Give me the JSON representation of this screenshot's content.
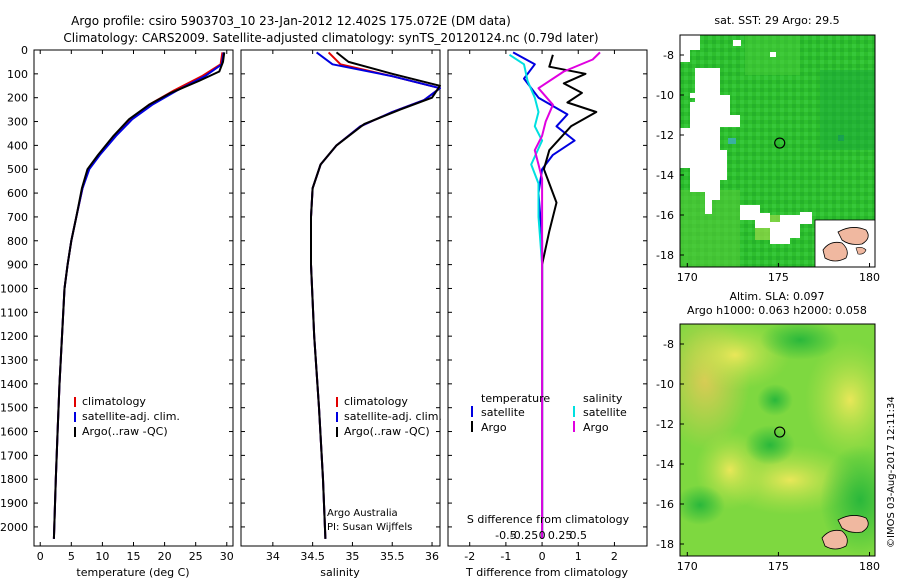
{
  "header": {
    "line1": "Argo profile: csiro 5903703_10 23-Jan-2012 12.402S 175.072E (DM data)",
    "line2": "Climatology: CARS2009. Satellite-adjusted climatology: synTS_20120124.nc (0.79d later)"
  },
  "depth_ticks": [
    0,
    100,
    200,
    300,
    400,
    500,
    600,
    700,
    800,
    900,
    1000,
    1100,
    1200,
    1300,
    1400,
    1500,
    1600,
    1700,
    1800,
    1900,
    2000
  ],
  "colors": {
    "climatology": "#e00000",
    "satellite": "#0000e0",
    "argo": "#000000",
    "satellite_s": "#00e0e0",
    "argo_s": "#e000e0"
  },
  "legend": {
    "climatology": "climatology",
    "satellite_adj": "satellite-adj. clim.",
    "argo": "Argo(..raw -QC)"
  },
  "panel_diff": {
    "title_left": "temperature",
    "title_right": "salinity",
    "satellite": "satellite",
    "argo": "Argo",
    "s_axis_label": "S difference from climatology",
    "xlabel": "T difference from climatology"
  },
  "credits": {
    "line1": "Argo Australia",
    "line2": "PI: Susan Wijffels"
  },
  "map_sst": {
    "title": "sat. SST: 29 Argo: 29.5"
  },
  "map_sla": {
    "title1": "Altim. SLA: 0.097",
    "title2": "Argo h1000: 0.063 h2000: 0.058"
  },
  "timestamp": "©IMOS 03-Aug-2017 12:11:34",
  "chart_data": [
    {
      "type": "line",
      "xlabel": "temperature (deg C)",
      "ylabel": "",
      "xlim": [
        -1,
        31
      ],
      "ylim": [
        0,
        2080
      ],
      "xticks": [
        0,
        5,
        10,
        15,
        20,
        25,
        30
      ],
      "series": [
        {
          "name": "climatology",
          "color": "#e00000",
          "points": [
            [
              29.3,
              10
            ],
            [
              29.0,
              60
            ],
            [
              26,
              110
            ],
            [
              21.5,
              170
            ],
            [
              17.5,
              230
            ],
            [
              14.5,
              290
            ],
            [
              12,
              360
            ],
            [
              9.5,
              440
            ],
            [
              7.8,
              500
            ],
            [
              6.8,
              580
            ],
            [
              5.8,
              700
            ],
            [
              5,
              800
            ],
            [
              4.4,
              900
            ],
            [
              3.9,
              1000
            ],
            [
              3.5,
              1200
            ],
            [
              3.1,
              1400
            ],
            [
              2.8,
              1600
            ],
            [
              2.5,
              1800
            ],
            [
              2.2,
              2050
            ]
          ]
        },
        {
          "name": "satellite-adj. clim.",
          "color": "#0000e0",
          "points": [
            [
              29.5,
              10
            ],
            [
              29.2,
              60
            ],
            [
              26.5,
              110
            ],
            [
              22,
              170
            ],
            [
              18,
              230
            ],
            [
              14.8,
              290
            ],
            [
              12.2,
              360
            ],
            [
              9.6,
              440
            ],
            [
              7.9,
              500
            ],
            [
              6.8,
              580
            ],
            [
              5.8,
              700
            ],
            [
              5,
              800
            ],
            [
              4.4,
              900
            ],
            [
              3.9,
              1000
            ],
            [
              3.5,
              1200
            ],
            [
              3.1,
              1400
            ],
            [
              2.8,
              1600
            ],
            [
              2.5,
              1800
            ],
            [
              2.2,
              2050
            ]
          ]
        },
        {
          "name": "Argo(..raw -QC)",
          "color": "#000000",
          "points": [
            [
              29.6,
              10
            ],
            [
              29.4,
              50
            ],
            [
              28.8,
              90
            ],
            [
              25.5,
              130
            ],
            [
              21,
              180
            ],
            [
              17.5,
              230
            ],
            [
              14.3,
              290
            ],
            [
              11.8,
              360
            ],
            [
              9.3,
              440
            ],
            [
              7.6,
              500
            ],
            [
              6.7,
              580
            ],
            [
              5.8,
              700
            ],
            [
              5,
              800
            ],
            [
              4.4,
              900
            ],
            [
              3.9,
              1000
            ],
            [
              3.5,
              1200
            ],
            [
              3.1,
              1400
            ],
            [
              2.8,
              1600
            ],
            [
              2.5,
              1800
            ],
            [
              2.2,
              2050
            ]
          ]
        }
      ]
    },
    {
      "type": "line",
      "xlabel": "salinity",
      "ylabel": "",
      "xlim": [
        33.6,
        36.1
      ],
      "ylim": [
        0,
        2080
      ],
      "xticks": [
        34,
        34.5,
        35,
        35.5,
        36
      ],
      "series": [
        {
          "name": "climatology",
          "color": "#e00000",
          "points": [
            [
              34.7,
              10
            ],
            [
              34.85,
              60
            ],
            [
              35.5,
              110
            ],
            [
              36.1,
              160
            ],
            [
              35.9,
              210
            ],
            [
              35.5,
              260
            ],
            [
              35.1,
              320
            ],
            [
              34.8,
              400
            ],
            [
              34.6,
              480
            ],
            [
              34.5,
              580
            ],
            [
              34.48,
              700
            ],
            [
              34.48,
              900
            ],
            [
              34.52,
              1200
            ],
            [
              34.58,
              1500
            ],
            [
              34.63,
              1800
            ],
            [
              34.66,
              2050
            ]
          ]
        },
        {
          "name": "satellite-adj. clim.",
          "color": "#0000e0",
          "points": [
            [
              34.55,
              10
            ],
            [
              34.75,
              60
            ],
            [
              35.5,
              110
            ],
            [
              36.1,
              160
            ],
            [
              35.9,
              210
            ],
            [
              35.5,
              260
            ],
            [
              35.1,
              320
            ],
            [
              34.8,
              400
            ],
            [
              34.6,
              480
            ],
            [
              34.5,
              580
            ],
            [
              34.48,
              700
            ],
            [
              34.48,
              900
            ],
            [
              34.52,
              1200
            ],
            [
              34.58,
              1500
            ],
            [
              34.63,
              1800
            ],
            [
              34.66,
              2050
            ]
          ]
        },
        {
          "name": "Argo(..raw -QC)",
          "color": "#000000",
          "points": [
            [
              34.8,
              10
            ],
            [
              34.95,
              50
            ],
            [
              35.5,
              100
            ],
            [
              36.1,
              150
            ],
            [
              36.0,
              200
            ],
            [
              35.6,
              250
            ],
            [
              35.15,
              310
            ],
            [
              34.8,
              400
            ],
            [
              34.6,
              480
            ],
            [
              34.5,
              580
            ],
            [
              34.48,
              700
            ],
            [
              34.48,
              900
            ],
            [
              34.52,
              1200
            ],
            [
              34.58,
              1500
            ],
            [
              34.63,
              1800
            ],
            [
              34.66,
              2050
            ]
          ]
        }
      ]
    },
    {
      "type": "line",
      "xlabel": "T difference from climatology",
      "ylabel": "",
      "xlim": [
        -2.6,
        2.9
      ],
      "ylim": [
        0,
        2080
      ],
      "xticks": [
        -2,
        -1,
        0,
        1,
        2
      ],
      "top_axis": {
        "label": "S difference from climatology",
        "ticks": [
          -0.5,
          -0.25,
          0,
          0.25,
          0.5
        ],
        "tick_labels": [
          "-0.5",
          "-0.25",
          "0",
          "0.25",
          "0.5"
        ]
      },
      "series": [
        {
          "name": "temperature satellite",
          "color": "#0000e0",
          "points": [
            [
              -0.8,
              10
            ],
            [
              -0.2,
              60
            ],
            [
              -0.5,
              120
            ],
            [
              -0.1,
              200
            ],
            [
              0.7,
              270
            ],
            [
              0.4,
              320
            ],
            [
              0.9,
              380
            ],
            [
              0.3,
              440
            ],
            [
              0,
              500
            ],
            [
              -0.1,
              600
            ],
            [
              0,
              800
            ],
            [
              0,
              1200
            ],
            [
              0,
              1600
            ],
            [
              0,
              2050
            ]
          ]
        },
        {
          "name": "temperature Argo",
          "color": "#000000",
          "points": [
            [
              0.3,
              20
            ],
            [
              0.2,
              70
            ],
            [
              1.2,
              100
            ],
            [
              0.6,
              140
            ],
            [
              1.1,
              180
            ],
            [
              0.7,
              220
            ],
            [
              1.5,
              260
            ],
            [
              0.8,
              320
            ],
            [
              0.2,
              420
            ],
            [
              0.05,
              500
            ],
            [
              0.2,
              560
            ],
            [
              0.4,
              640
            ],
            [
              0.2,
              760
            ],
            [
              0,
              900
            ],
            [
              0,
              1200
            ],
            [
              0,
              1600
            ],
            [
              0,
              2050
            ]
          ]
        },
        {
          "name": "salinity satellite",
          "color": "#00e0e0",
          "points": [
            [
              -0.9,
              20
            ],
            [
              -0.5,
              60
            ],
            [
              -0.4,
              130
            ],
            [
              -0.2,
              200
            ],
            [
              -0.1,
              260
            ],
            [
              -0.2,
              320
            ],
            [
              0,
              380
            ],
            [
              -0.3,
              480
            ],
            [
              -0.1,
              560
            ],
            [
              -0.1,
              700
            ],
            [
              0,
              900
            ],
            [
              0,
              1200
            ],
            [
              0,
              1600
            ],
            [
              0,
              2050
            ]
          ]
        },
        {
          "name": "salinity Argo",
          "color": "#e000e0",
          "points": [
            [
              1.6,
              10
            ],
            [
              1.4,
              40
            ],
            [
              0.6,
              90
            ],
            [
              -0.1,
              160
            ],
            [
              0.3,
              230
            ],
            [
              0.1,
              300
            ],
            [
              0,
              360
            ],
            [
              -0.2,
              420
            ],
            [
              -0.1,
              480
            ],
            [
              0,
              540
            ],
            [
              0,
              1200
            ],
            [
              0,
              2050
            ]
          ]
        }
      ]
    }
  ],
  "maps": {
    "sst": {
      "xticks": [
        170,
        175,
        180
      ],
      "yticks": [
        -8,
        -10,
        -12,
        -14,
        -16,
        -18
      ],
      "xlim": [
        169.6,
        180.3
      ],
      "ylim": [
        -18.6,
        -7.0
      ],
      "argo_position": [
        175.072,
        -12.402
      ]
    },
    "sla": {
      "xticks": [
        170,
        175,
        180
      ],
      "yticks": [
        -8,
        -10,
        -12,
        -14,
        -16,
        -18
      ],
      "xlim": [
        169.6,
        180.3
      ],
      "ylim": [
        -18.6,
        -7.0
      ],
      "argo_position": [
        175.072,
        -12.402
      ]
    }
  }
}
